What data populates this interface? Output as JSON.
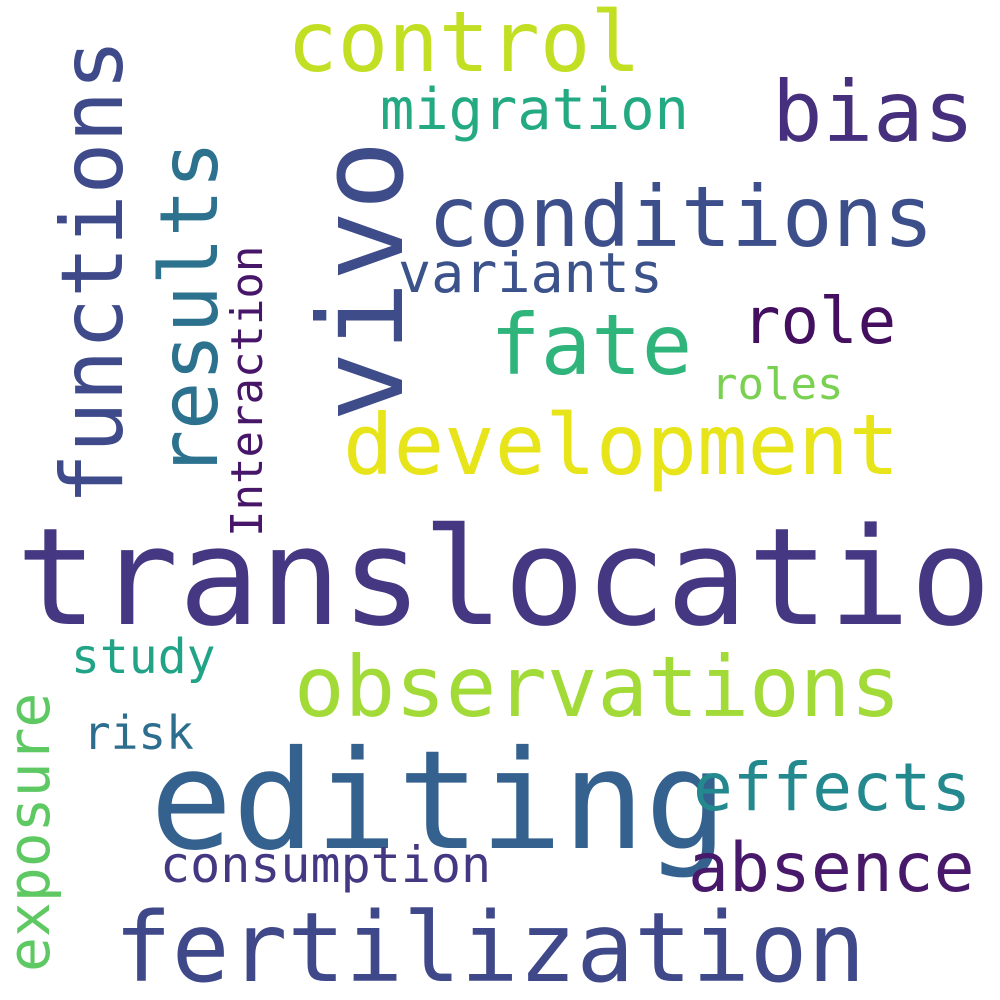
{
  "words": {
    "translocation": {
      "text": "translocation",
      "color": "#453781"
    },
    "editing": {
      "text": "editing",
      "color": "#34618d"
    },
    "vivo": {
      "text": "vivo",
      "color": "#3e4c8a"
    },
    "fertilization": {
      "text": "fertilization",
      "color": "#3f4889"
    },
    "observations": {
      "text": "observations",
      "color": "#a2da37"
    },
    "development": {
      "text": "development",
      "color": "#e7e419"
    },
    "conditions": {
      "text": "conditions",
      "color": "#3c4f8a"
    },
    "functions": {
      "text": "functions",
      "color": "#3e4a89"
    },
    "results": {
      "text": "results",
      "color": "#2c728e"
    },
    "control": {
      "text": "control",
      "color": "#c2df23"
    },
    "fate": {
      "text": "fate",
      "color": "#2fb47c"
    },
    "bias": {
      "text": "bias",
      "color": "#46307e"
    },
    "effects": {
      "text": "effects",
      "color": "#23898e"
    },
    "absence": {
      "text": "absence",
      "color": "#48186a"
    },
    "exposure": {
      "text": "exposure",
      "color": "#5ec962"
    },
    "migration": {
      "text": "migration",
      "color": "#24aa83"
    },
    "variants": {
      "text": "variants",
      "color": "#3b528b"
    },
    "role": {
      "text": "role",
      "color": "#440f5f"
    },
    "consumption": {
      "text": "consumption",
      "color": "#453882"
    },
    "interaction": {
      "text": "Interaction",
      "color": "#481668"
    },
    "roles": {
      "text": "roles",
      "color": "#7ad151"
    },
    "study": {
      "text": "study",
      "color": "#20a386"
    },
    "risk": {
      "text": "risk",
      "color": "#2d6e8e"
    }
  }
}
